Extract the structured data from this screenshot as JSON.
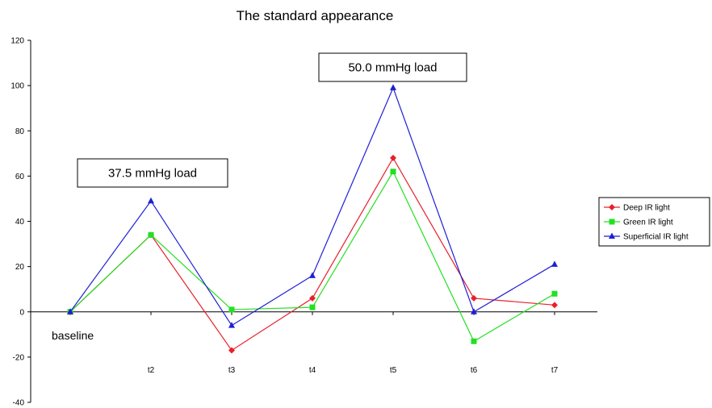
{
  "chart_data": {
    "type": "line",
    "title": "The standard appearance",
    "categories": [
      "",
      "t2",
      "t3",
      "t4",
      "t5",
      "t6",
      "t7"
    ],
    "series": [
      {
        "name": "Deep IR light",
        "color": "#e8202a",
        "marker": "diamond",
        "values": [
          0,
          34,
          -17,
          6,
          68,
          6,
          3
        ]
      },
      {
        "name": "Green IR light",
        "color": "#22e022",
        "marker": "square",
        "values": [
          0,
          34,
          1,
          2,
          62,
          -13,
          8
        ]
      },
      {
        "name": "Superficial IR light",
        "color": "#1f1fd6",
        "marker": "triangle",
        "values": [
          0,
          49,
          -6,
          16,
          99,
          0,
          21
        ]
      }
    ],
    "ylim": [
      -40,
      120
    ],
    "yticks": [
      -40,
      -20,
      0,
      20,
      40,
      60,
      80,
      100,
      120
    ],
    "grid": false,
    "legend": "right",
    "annotations": [
      {
        "text": "37.5 mmHg load",
        "category_index": 1
      },
      {
        "text": "50.0 mmHg load",
        "category_index": 4
      }
    ],
    "baseline_label": "baseline"
  }
}
